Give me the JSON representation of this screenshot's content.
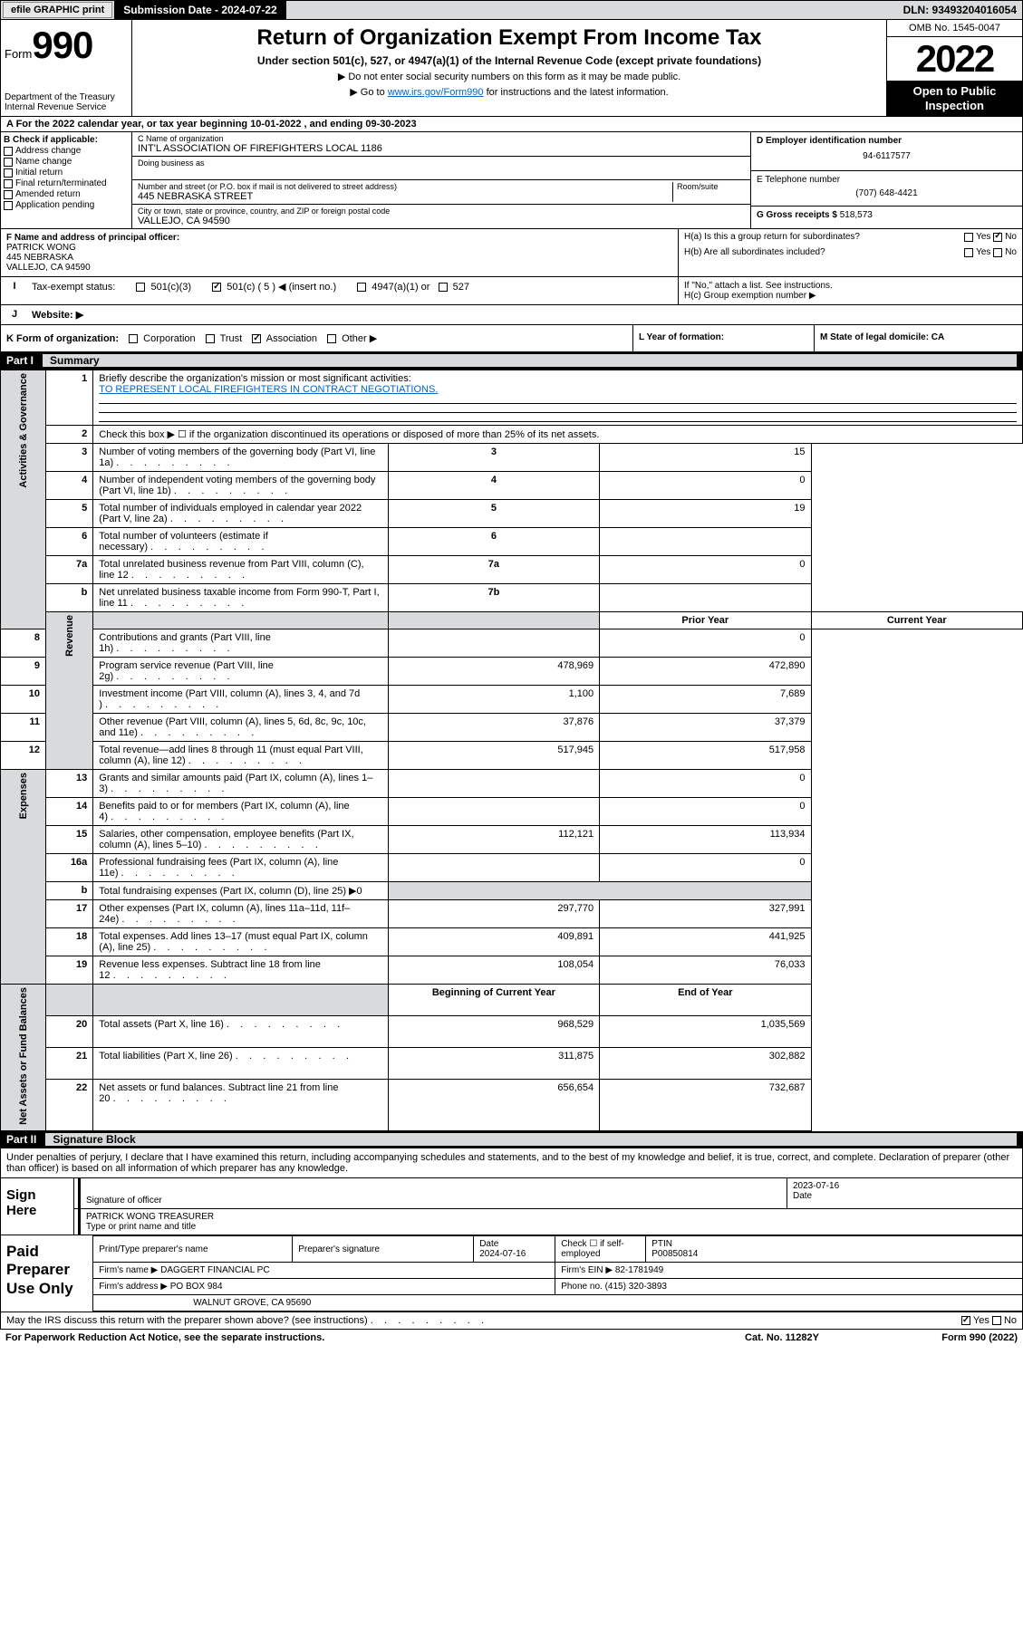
{
  "topbar": {
    "efile": "efile GRAPHIC print",
    "submission": "Submission Date - 2024-07-22",
    "dln": "DLN: 93493204016054"
  },
  "header": {
    "form_label": "Form",
    "form_no": "990",
    "dept": "Department of the Treasury",
    "irs": "Internal Revenue Service",
    "title": "Return of Organization Exempt From Income Tax",
    "subtitle": "Under section 501(c), 527, or 4947(a)(1) of the Internal Revenue Code (except private foundations)",
    "note1": "▶ Do not enter social security numbers on this form as it may be made public.",
    "note2_pre": "▶ Go to ",
    "note2_link": "www.irs.gov/Form990",
    "note2_post": " for instructions and the latest information.",
    "omb": "OMB No. 1545-0047",
    "year": "2022",
    "otp": "Open to Public Inspection"
  },
  "row_a": "A For the 2022 calendar year, or tax year beginning 10-01-2022    , and ending 09-30-2023",
  "col_b": {
    "title": "B Check if applicable:",
    "opts": [
      "Address change",
      "Name change",
      "Initial return",
      "Final return/terminated",
      "Amended return",
      "Application pending"
    ]
  },
  "col_c": {
    "name_lbl": "C Name of organization",
    "name": "INT'L ASSOCIATION OF FIREFIGHTERS LOCAL 1186",
    "dba_lbl": "Doing business as",
    "addr_lbl": "Number and street (or P.O. box if mail is not delivered to street address)",
    "room_lbl": "Room/suite",
    "addr": "445 NEBRASKA STREET",
    "city_lbl": "City or town, state or province, country, and ZIP or foreign postal code",
    "city": "VALLEJO, CA  94590"
  },
  "col_de": {
    "d_lbl": "D Employer identification number",
    "d_val": "94-6117577",
    "e_lbl": "E Telephone number",
    "e_val": "(707) 648-4421",
    "g_lbl": "G Gross receipts $ ",
    "g_val": "518,573"
  },
  "col_f": {
    "lbl": "F Name and address of principal officer:",
    "name": "PATRICK WONG",
    "addr1": "445 NEBRASKA",
    "addr2": "VALLEJO, CA  94590"
  },
  "col_h": {
    "ha": "H(a)  Is this a group return for subordinates?",
    "hb": "H(b)  Are all subordinates included?",
    "hb_note": "If \"No,\" attach a list. See instructions.",
    "hc": "H(c)  Group exemption number ▶"
  },
  "row_i": {
    "lbl": "Tax-exempt status:",
    "o1": "501(c)(3)",
    "o2": "501(c) ( 5 ) ◀ (insert no.)",
    "o3": "4947(a)(1) or",
    "o4": "527"
  },
  "row_j": "Website: ▶",
  "row_k": "K Form of organization:",
  "row_k_opts": [
    "Corporation",
    "Trust",
    "Association",
    "Other ▶"
  ],
  "row_l": "L Year of formation:",
  "row_m": "M State of legal domicile: CA",
  "part1": {
    "label": "Part I",
    "title": "Summary"
  },
  "summary": {
    "sections": [
      {
        "side": "Activities & Governance",
        "rows": [
          {
            "n": "1",
            "d": "Briefly describe the organization's mission or most significant activities:",
            "full": true,
            "mission": "TO REPRESENT LOCAL FIREFIGHTERS IN CONTRACT NEGOTIATIONS."
          },
          {
            "n": "2",
            "d": "Check this box ▶ ☐  if the organization discontinued its operations or disposed of more than 25% of its net assets.",
            "full": true
          },
          {
            "n": "3",
            "d": "Number of voting members of the governing body (Part VI, line 1a)",
            "box": "3",
            "v": "15"
          },
          {
            "n": "4",
            "d": "Number of independent voting members of the governing body (Part VI, line 1b)",
            "box": "4",
            "v": "0"
          },
          {
            "n": "5",
            "d": "Total number of individuals employed in calendar year 2022 (Part V, line 2a)",
            "box": "5",
            "v": "19"
          },
          {
            "n": "6",
            "d": "Total number of volunteers (estimate if necessary)",
            "box": "6",
            "v": ""
          },
          {
            "n": "7a",
            "d": "Total unrelated business revenue from Part VIII, column (C), line 12",
            "box": "7a",
            "v": "0"
          },
          {
            "n": "b",
            "d": "Net unrelated business taxable income from Form 990-T, Part I, line 11",
            "box": "7b",
            "v": ""
          }
        ]
      },
      {
        "side": "Revenue",
        "hdr": [
          "Prior Year",
          "Current Year"
        ],
        "rows": [
          {
            "n": "8",
            "d": "Contributions and grants (Part VIII, line 1h)",
            "p": "",
            "c": "0"
          },
          {
            "n": "9",
            "d": "Program service revenue (Part VIII, line 2g)",
            "p": "478,969",
            "c": "472,890"
          },
          {
            "n": "10",
            "d": "Investment income (Part VIII, column (A), lines 3, 4, and 7d )",
            "p": "1,100",
            "c": "7,689"
          },
          {
            "n": "11",
            "d": "Other revenue (Part VIII, column (A), lines 5, 6d, 8c, 9c, 10c, and 11e)",
            "p": "37,876",
            "c": "37,379"
          },
          {
            "n": "12",
            "d": "Total revenue—add lines 8 through 11 (must equal Part VIII, column (A), line 12)",
            "p": "517,945",
            "c": "517,958"
          }
        ]
      },
      {
        "side": "Expenses",
        "rows": [
          {
            "n": "13",
            "d": "Grants and similar amounts paid (Part IX, column (A), lines 1–3)",
            "p": "",
            "c": "0"
          },
          {
            "n": "14",
            "d": "Benefits paid to or for members (Part IX, column (A), line 4)",
            "p": "",
            "c": "0"
          },
          {
            "n": "15",
            "d": "Salaries, other compensation, employee benefits (Part IX, column (A), lines 5–10)",
            "p": "112,121",
            "c": "113,934"
          },
          {
            "n": "16a",
            "d": "Professional fundraising fees (Part IX, column (A), line 11e)",
            "p": "",
            "c": "0"
          },
          {
            "n": "b",
            "d": "Total fundraising expenses (Part IX, column (D), line 25) ▶0",
            "grey": true
          },
          {
            "n": "17",
            "d": "Other expenses (Part IX, column (A), lines 11a–11d, 11f–24e)",
            "p": "297,770",
            "c": "327,991"
          },
          {
            "n": "18",
            "d": "Total expenses. Add lines 13–17 (must equal Part IX, column (A), line 25)",
            "p": "409,891",
            "c": "441,925"
          },
          {
            "n": "19",
            "d": "Revenue less expenses. Subtract line 18 from line 12",
            "p": "108,054",
            "c": "76,033"
          }
        ]
      },
      {
        "side": "Net Assets or Fund Balances",
        "hdr": [
          "Beginning of Current Year",
          "End of Year"
        ],
        "rows": [
          {
            "n": "20",
            "d": "Total assets (Part X, line 16)",
            "p": "968,529",
            "c": "1,035,569"
          },
          {
            "n": "21",
            "d": "Total liabilities (Part X, line 26)",
            "p": "311,875",
            "c": "302,882"
          },
          {
            "n": "22",
            "d": "Net assets or fund balances. Subtract line 21 from line 20",
            "p": "656,654",
            "c": "732,687"
          }
        ]
      }
    ]
  },
  "part2": {
    "label": "Part II",
    "title": "Signature Block"
  },
  "penalty": "Under penalties of perjury, I declare that I have examined this return, including accompanying schedules and statements, and to the best of my knowledge and belief, it is true, correct, and complete. Declaration of preparer (other than officer) is based on all information of which preparer has any knowledge.",
  "sign": {
    "label": "Sign Here",
    "sig_lbl": "Signature of officer",
    "date": "2023-07-16",
    "date_lbl": "Date",
    "name": "PATRICK WONG TREASURER",
    "name_lbl": "Type or print name and title"
  },
  "paid": {
    "label": "Paid Preparer Use Only",
    "h": [
      "Print/Type preparer's name",
      "Preparer's signature",
      "Date",
      "",
      "PTIN"
    ],
    "r1_date": "2024-07-16",
    "r1_check": "Check ☐ if self-employed",
    "r1_ptin": "P00850814",
    "firm_lbl": "Firm's name    ▶",
    "firm": "DAGGERT FINANCIAL PC",
    "ein_lbl": "Firm's EIN ▶",
    "ein": "82-1781949",
    "addr_lbl": "Firm's address ▶",
    "addr": "PO BOX 984",
    "addr2": "WALNUT GROVE, CA  95690",
    "phone_lbl": "Phone no.",
    "phone": "(415) 320-3893"
  },
  "footer": {
    "q": "May the IRS discuss this return with the preparer shown above? (see instructions)",
    "pra": "For Paperwork Reduction Act Notice, see the separate instructions.",
    "cat": "Cat. No. 11282Y",
    "form": "Form 990 (2022)"
  }
}
